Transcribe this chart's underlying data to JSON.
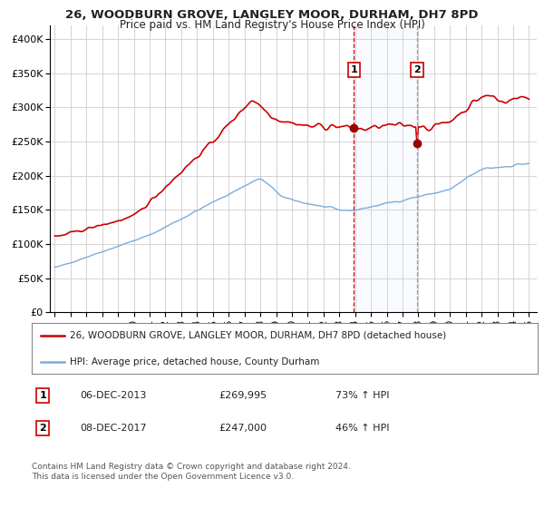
{
  "title": "26, WOODBURN GROVE, LANGLEY MOOR, DURHAM, DH7 8PD",
  "subtitle": "Price paid vs. HM Land Registry's House Price Index (HPI)",
  "legend_line1": "26, WOODBURN GROVE, LANGLEY MOOR, DURHAM, DH7 8PD (detached house)",
  "legend_line2": "HPI: Average price, detached house, County Durham",
  "sale1_date": "06-DEC-2013",
  "sale1_price": 269995,
  "sale1_label": "1",
  "sale1_pct": "73% ↑ HPI",
  "sale2_date": "08-DEC-2017",
  "sale2_price": 247000,
  "sale2_label": "2",
  "sale2_pct": "46% ↑ HPI",
  "footnote": "Contains HM Land Registry data © Crown copyright and database right 2024.\nThis data is licensed under the Open Government Licence v3.0.",
  "hpi_color": "#7aaddc",
  "property_color": "#cc0000",
  "sale_marker_color": "#990000",
  "shade_color": "#dce9f5",
  "vline1_color": "#cc0000",
  "vline2_color": "#9999bb",
  "background_color": "#ffffff",
  "grid_color": "#cccccc",
  "ylabel_vals": [
    "£0",
    "£50K",
    "£100K",
    "£150K",
    "£200K",
    "£250K",
    "£300K",
    "£350K",
    "£400K"
  ],
  "ylim": [
    0,
    420000
  ],
  "xlim_start": 1994.7,
  "xlim_end": 2025.5,
  "sale1_year": 2013.92,
  "sale2_year": 2017.92
}
